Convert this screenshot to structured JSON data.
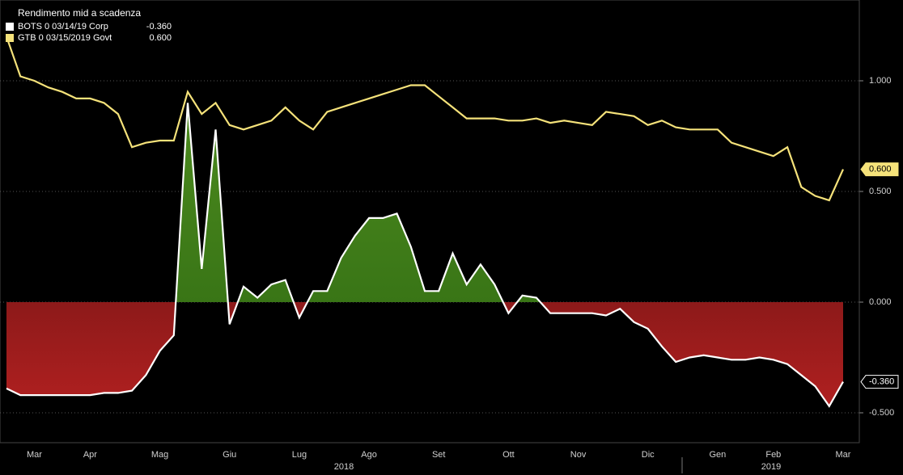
{
  "chart_data": {
    "type": "line",
    "title": "Rendimento mid a scadenza",
    "categories": [
      null,
      null,
      "Mar",
      null,
      null,
      null,
      "Apr",
      null,
      null,
      null,
      null,
      "Mag",
      null,
      null,
      null,
      null,
      "Giu",
      null,
      null,
      null,
      null,
      "Lug",
      null,
      null,
      null,
      null,
      "Ago",
      null,
      null,
      null,
      null,
      "Set",
      null,
      null,
      null,
      null,
      "Ott",
      null,
      null,
      null,
      null,
      "Nov",
      null,
      null,
      null,
      null,
      "Dic",
      null,
      null,
      null,
      null,
      "Gen",
      null,
      null,
      null,
      "Feb",
      null,
      null,
      null,
      null,
      "Mar"
    ],
    "years": [
      "2018",
      "2019"
    ],
    "series": [
      {
        "name": "BOTS 0 03/14/19 Corp",
        "color": "#ffffff",
        "last_label": "-0.360",
        "values": [
          -0.39,
          -0.42,
          -0.42,
          -0.42,
          -0.42,
          -0.42,
          -0.42,
          -0.41,
          -0.41,
          -0.4,
          -0.33,
          -0.22,
          -0.15,
          0.9,
          0.15,
          0.78,
          -0.1,
          0.07,
          0.02,
          0.08,
          0.1,
          -0.07,
          0.05,
          0.05,
          0.2,
          0.3,
          0.38,
          0.38,
          0.4,
          0.25,
          0.05,
          0.05,
          0.22,
          0.08,
          0.17,
          0.08,
          -0.05,
          0.03,
          0.02,
          -0.05,
          -0.05,
          -0.05,
          -0.05,
          -0.06,
          -0.03,
          -0.09,
          -0.12,
          -0.2,
          -0.27,
          -0.25,
          -0.24,
          -0.25,
          -0.26,
          -0.26,
          -0.25,
          -0.26,
          -0.28,
          -0.33,
          -0.38,
          -0.47,
          -0.36
        ]
      },
      {
        "name": "GTB 0 03/15/2019 Govt",
        "color": "#f5e27a",
        "last_label": "0.600",
        "values": [
          1.2,
          1.02,
          1.0,
          0.97,
          0.95,
          0.92,
          0.92,
          0.9,
          0.85,
          0.7,
          0.72,
          0.73,
          0.73,
          0.95,
          0.85,
          0.9,
          0.8,
          0.78,
          0.8,
          0.82,
          0.88,
          0.82,
          0.78,
          0.86,
          0.88,
          0.9,
          0.92,
          0.94,
          0.96,
          0.98,
          0.98,
          0.93,
          0.88,
          0.83,
          0.83,
          0.83,
          0.82,
          0.82,
          0.83,
          0.81,
          0.82,
          0.81,
          0.8,
          0.86,
          0.85,
          0.84,
          0.8,
          0.82,
          0.79,
          0.78,
          0.78,
          0.78,
          0.72,
          0.7,
          0.68,
          0.66,
          0.7,
          0.52,
          0.48,
          0.46,
          0.6
        ]
      }
    ],
    "ylim": [
      -0.635,
      1.365
    ],
    "yticks": [
      {
        "value": -0.5,
        "label": "-0.500"
      },
      {
        "value": 0,
        "label": "0.000"
      },
      {
        "value": 0.5,
        "label": "0.500"
      },
      {
        "value": 1.0,
        "label": "1.000"
      }
    ],
    "grid": true
  }
}
